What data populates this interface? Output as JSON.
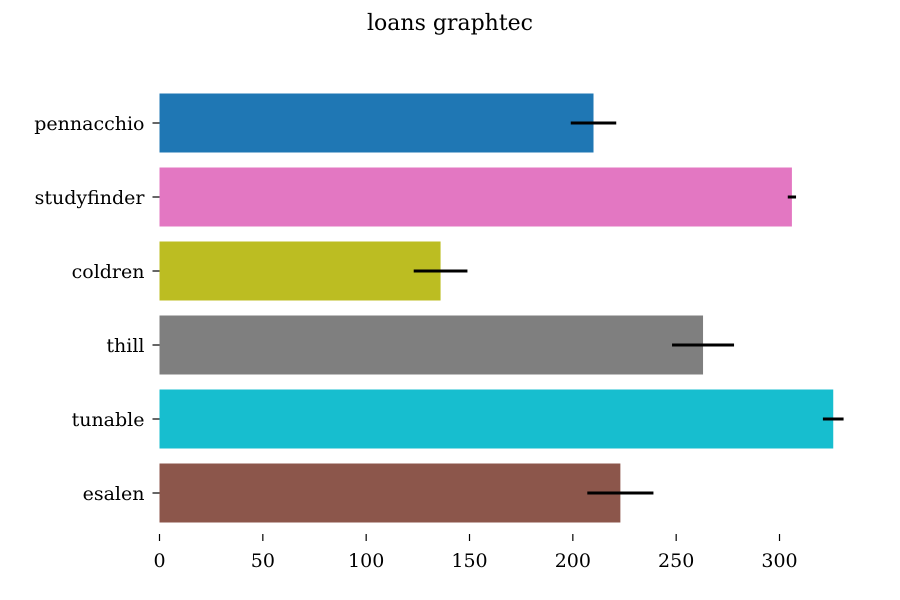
{
  "chart_data": {
    "type": "bar",
    "orientation": "horizontal",
    "title": "loans graphtec",
    "xlabel": "",
    "ylabel": "",
    "xlim": [
      0,
      330
    ],
    "x_ticks": [
      0,
      50,
      100,
      150,
      200,
      250,
      300
    ],
    "grid": false,
    "legend": "none",
    "categories": [
      "pennacchio",
      "studyfinder",
      "coldren",
      "thill",
      "tunable",
      "esalen"
    ],
    "values": [
      210,
      306,
      136,
      263,
      326,
      223
    ],
    "error": [
      11,
      2,
      13,
      15,
      5,
      16
    ],
    "colors": [
      "#1f77b4",
      "#e377c2",
      "#bcbd22",
      "#7f7f7f",
      "#17becf",
      "#8c564b"
    ]
  }
}
